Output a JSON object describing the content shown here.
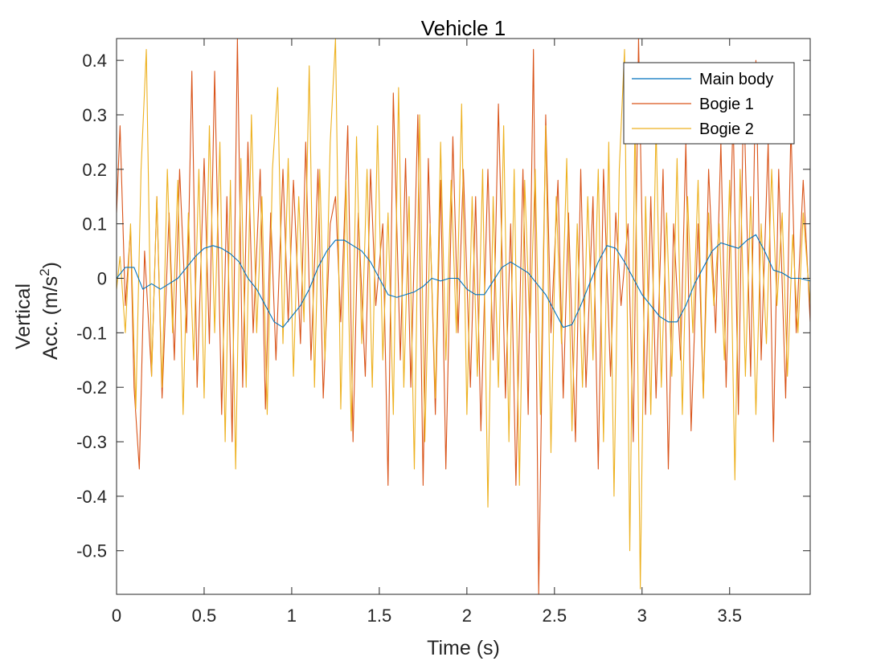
{
  "chart_data": {
    "type": "line",
    "title": "Vehicle 1",
    "xlabel": "Time (s)",
    "ylabel_line1": "Vertical",
    "ylabel_line2_prefix": "Acc. (m/s",
    "ylabel_superscript": "2",
    "ylabel_line2_suffix": ")",
    "xlim": [
      0,
      3.96
    ],
    "ylim": [
      -0.58,
      0.44
    ],
    "x_ticks": [
      0,
      0.5,
      1,
      1.5,
      2,
      2.5,
      3,
      3.5
    ],
    "x_tick_labels": [
      "0",
      "0.5",
      "1",
      "1.5",
      "2",
      "2.5",
      "3",
      "3.5"
    ],
    "y_ticks": [
      -0.5,
      -0.4,
      -0.3,
      -0.2,
      -0.1,
      0,
      0.1,
      0.2,
      0.3,
      0.4
    ],
    "y_tick_labels": [
      "-0.5",
      "-0.4",
      "-0.3",
      "-0.2",
      "-0.1",
      "0",
      "0.1",
      "0.2",
      "0.3",
      "0.4"
    ],
    "grid": false,
    "legend_position": "top-right",
    "series": [
      {
        "name": "Main body",
        "color": "#0072BD",
        "x": [
          0,
          0.05,
          0.1,
          0.15,
          0.2,
          0.25,
          0.3,
          0.35,
          0.4,
          0.45,
          0.5,
          0.55,
          0.6,
          0.65,
          0.7,
          0.75,
          0.8,
          0.85,
          0.9,
          0.95,
          1.0,
          1.05,
          1.1,
          1.15,
          1.2,
          1.25,
          1.3,
          1.35,
          1.4,
          1.45,
          1.5,
          1.55,
          1.6,
          1.65,
          1.7,
          1.75,
          1.8,
          1.85,
          1.9,
          1.95,
          2.0,
          2.05,
          2.1,
          2.15,
          2.2,
          2.25,
          2.3,
          2.35,
          2.4,
          2.45,
          2.5,
          2.55,
          2.6,
          2.65,
          2.7,
          2.75,
          2.8,
          2.85,
          2.9,
          2.95,
          3.0,
          3.05,
          3.1,
          3.15,
          3.2,
          3.25,
          3.3,
          3.35,
          3.4,
          3.45,
          3.5,
          3.55,
          3.6,
          3.65,
          3.7,
          3.75,
          3.8,
          3.85,
          3.9,
          3.96
        ],
        "values": [
          0.0,
          0.02,
          0.02,
          -0.02,
          -0.01,
          -0.02,
          -0.01,
          0.0,
          0.02,
          0.04,
          0.055,
          0.06,
          0.055,
          0.045,
          0.03,
          0.0,
          -0.02,
          -0.05,
          -0.08,
          -0.09,
          -0.07,
          -0.05,
          -0.02,
          0.02,
          0.05,
          0.07,
          0.07,
          0.06,
          0.05,
          0.03,
          0.0,
          -0.03,
          -0.035,
          -0.03,
          -0.025,
          -0.015,
          0.0,
          -0.005,
          0.0,
          0.0,
          -0.02,
          -0.03,
          -0.03,
          -0.005,
          0.02,
          0.03,
          0.02,
          0.01,
          -0.01,
          -0.03,
          -0.06,
          -0.09,
          -0.085,
          -0.05,
          -0.01,
          0.03,
          0.06,
          0.055,
          0.03,
          0.0,
          -0.03,
          -0.05,
          -0.07,
          -0.08,
          -0.08,
          -0.05,
          -0.01,
          0.02,
          0.05,
          0.065,
          0.06,
          0.055,
          0.07,
          0.08,
          0.05,
          0.015,
          0.01,
          0.0,
          0.0,
          -0.005
        ]
      },
      {
        "name": "Bogie 1",
        "color": "#D95319",
        "x": [
          0,
          0.02,
          0.05,
          0.08,
          0.1,
          0.13,
          0.16,
          0.2,
          0.23,
          0.26,
          0.3,
          0.33,
          0.36,
          0.4,
          0.43,
          0.46,
          0.5,
          0.53,
          0.56,
          0.6,
          0.63,
          0.66,
          0.69,
          0.72,
          0.75,
          0.78,
          0.82,
          0.85,
          0.88,
          0.91,
          0.95,
          0.98,
          1.01,
          1.05,
          1.08,
          1.11,
          1.15,
          1.18,
          1.22,
          1.25,
          1.28,
          1.32,
          1.35,
          1.38,
          1.42,
          1.45,
          1.48,
          1.52,
          1.55,
          1.58,
          1.62,
          1.65,
          1.68,
          1.72,
          1.75,
          1.78,
          1.82,
          1.85,
          1.88,
          1.92,
          1.95,
          1.98,
          2.02,
          2.05,
          2.08,
          2.12,
          2.15,
          2.18,
          2.22,
          2.25,
          2.28,
          2.32,
          2.35,
          2.38,
          2.41,
          2.45,
          2.48,
          2.52,
          2.55,
          2.58,
          2.62,
          2.65,
          2.68,
          2.72,
          2.75,
          2.78,
          2.82,
          2.85,
          2.88,
          2.92,
          2.95,
          2.98,
          3.02,
          3.05,
          3.08,
          3.12,
          3.15,
          3.18,
          3.22,
          3.25,
          3.28,
          3.32,
          3.35,
          3.38,
          3.42,
          3.45,
          3.48,
          3.52,
          3.55,
          3.58,
          3.62,
          3.65,
          3.68,
          3.72,
          3.75,
          3.78,
          3.82,
          3.85,
          3.88,
          3.92,
          3.96
        ],
        "values": [
          0.12,
          0.28,
          -0.05,
          0.09,
          -0.2,
          -0.35,
          0.05,
          -0.18,
          0.15,
          -0.22,
          0.12,
          -0.15,
          0.2,
          -0.1,
          0.38,
          -0.2,
          0.22,
          -0.12,
          0.38,
          -0.25,
          0.15,
          -0.3,
          0.44,
          -0.2,
          0.25,
          -0.1,
          0.2,
          -0.24,
          0.12,
          -0.15,
          0.2,
          -0.08,
          0.18,
          -0.12,
          0.25,
          -0.15,
          0.2,
          -0.22,
          0.1,
          0.15,
          -0.08,
          0.28,
          -0.3,
          0.12,
          -0.18,
          0.2,
          -0.05,
          0.1,
          -0.38,
          0.34,
          -0.15,
          0.22,
          -0.2,
          0.3,
          -0.38,
          0.22,
          -0.25,
          0.18,
          -0.35,
          0.26,
          -0.1,
          0.2,
          -0.2,
          0.15,
          -0.28,
          0.2,
          -0.15,
          0.32,
          -0.22,
          0.1,
          -0.38,
          0.2,
          -0.25,
          0.42,
          -0.58,
          0.3,
          -0.1,
          0.18,
          -0.22,
          0.12,
          -0.3,
          0.2,
          -0.2,
          0.15,
          -0.35,
          0.2,
          -0.18,
          0.12,
          -0.05,
          0.1,
          -0.3,
          0.44,
          -0.25,
          0.15,
          -0.22,
          0.2,
          -0.35,
          0.1,
          -0.15,
          0.25,
          -0.28,
          0.1,
          -0.22,
          0.2,
          -0.1,
          0.25,
          -0.2,
          0.3,
          -0.25,
          0.35,
          -0.18,
          0.4,
          -0.15,
          0.25,
          -0.3,
          0.2,
          -0.22,
          0.28,
          -0.1,
          0.18,
          -0.08
        ]
      },
      {
        "name": "Bogie 2",
        "color": "#EDB120",
        "x": [
          0,
          0.02,
          0.05,
          0.08,
          0.11,
          0.14,
          0.17,
          0.2,
          0.23,
          0.26,
          0.29,
          0.32,
          0.35,
          0.38,
          0.41,
          0.44,
          0.47,
          0.5,
          0.53,
          0.56,
          0.59,
          0.62,
          0.65,
          0.68,
          0.71,
          0.74,
          0.77,
          0.8,
          0.83,
          0.86,
          0.89,
          0.92,
          0.95,
          0.98,
          1.01,
          1.04,
          1.07,
          1.1,
          1.13,
          1.16,
          1.19,
          1.22,
          1.25,
          1.28,
          1.31,
          1.34,
          1.37,
          1.4,
          1.43,
          1.46,
          1.49,
          1.52,
          1.55,
          1.58,
          1.61,
          1.64,
          1.67,
          1.7,
          1.73,
          1.76,
          1.79,
          1.82,
          1.85,
          1.88,
          1.91,
          1.94,
          1.97,
          2.0,
          2.03,
          2.06,
          2.09,
          2.12,
          2.15,
          2.18,
          2.21,
          2.24,
          2.27,
          2.3,
          2.33,
          2.36,
          2.39,
          2.42,
          2.45,
          2.48,
          2.51,
          2.54,
          2.57,
          2.6,
          2.63,
          2.66,
          2.69,
          2.72,
          2.75,
          2.78,
          2.81,
          2.84,
          2.87,
          2.9,
          2.93,
          2.96,
          2.99,
          3.02,
          3.05,
          3.08,
          3.11,
          3.14,
          3.17,
          3.2,
          3.23,
          3.26,
          3.29,
          3.32,
          3.35,
          3.38,
          3.41,
          3.44,
          3.47,
          3.5,
          3.53,
          3.56,
          3.59,
          3.62,
          3.65,
          3.68,
          3.71,
          3.74,
          3.77,
          3.8,
          3.83,
          3.86,
          3.89,
          3.92,
          3.96
        ],
        "values": [
          -0.02,
          0.04,
          -0.1,
          0.1,
          -0.24,
          0.2,
          0.42,
          -0.18,
          0.15,
          -0.2,
          0.2,
          -0.1,
          0.18,
          -0.25,
          0.12,
          -0.15,
          0.2,
          -0.22,
          0.28,
          -0.1,
          0.25,
          -0.3,
          0.18,
          -0.35,
          0.22,
          -0.2,
          0.3,
          -0.1,
          0.15,
          -0.25,
          0.2,
          0.35,
          -0.12,
          0.22,
          -0.18,
          0.15,
          -0.08,
          0.39,
          -0.2,
          0.2,
          -0.15,
          0.25,
          0.44,
          -0.24,
          0.18,
          -0.28,
          0.26,
          -0.12,
          0.2,
          -0.2,
          0.28,
          -0.15,
          0.12,
          -0.25,
          0.35,
          -0.2,
          0.15,
          -0.35,
          0.3,
          -0.3,
          0.1,
          -0.22,
          0.25,
          -0.15,
          0.18,
          -0.1,
          0.32,
          -0.25,
          0.15,
          -0.18,
          0.2,
          -0.42,
          0.15,
          -0.2,
          0.28,
          -0.3,
          0.2,
          -0.38,
          0.18,
          -0.1,
          0.2,
          -0.25,
          0.28,
          -0.32,
          0.15,
          -0.12,
          0.22,
          -0.28,
          0.1,
          -0.2,
          0.15,
          -0.15,
          0.2,
          -0.3,
          0.25,
          -0.4,
          0.2,
          0.42,
          -0.5,
          0.3,
          -0.57,
          0.15,
          -0.25,
          0.28,
          -0.2,
          0.12,
          -0.18,
          0.22,
          -0.25,
          0.15,
          -0.1,
          0.18,
          -0.22,
          0.12,
          -0.05,
          0.1,
          -0.15,
          0.18,
          -0.37,
          0.2,
          -0.18,
          0.15,
          -0.25,
          0.1,
          -0.12,
          0.2,
          -0.05,
          0.12,
          -0.18,
          0.08,
          -0.1,
          0.12,
          -0.05
        ]
      }
    ]
  }
}
